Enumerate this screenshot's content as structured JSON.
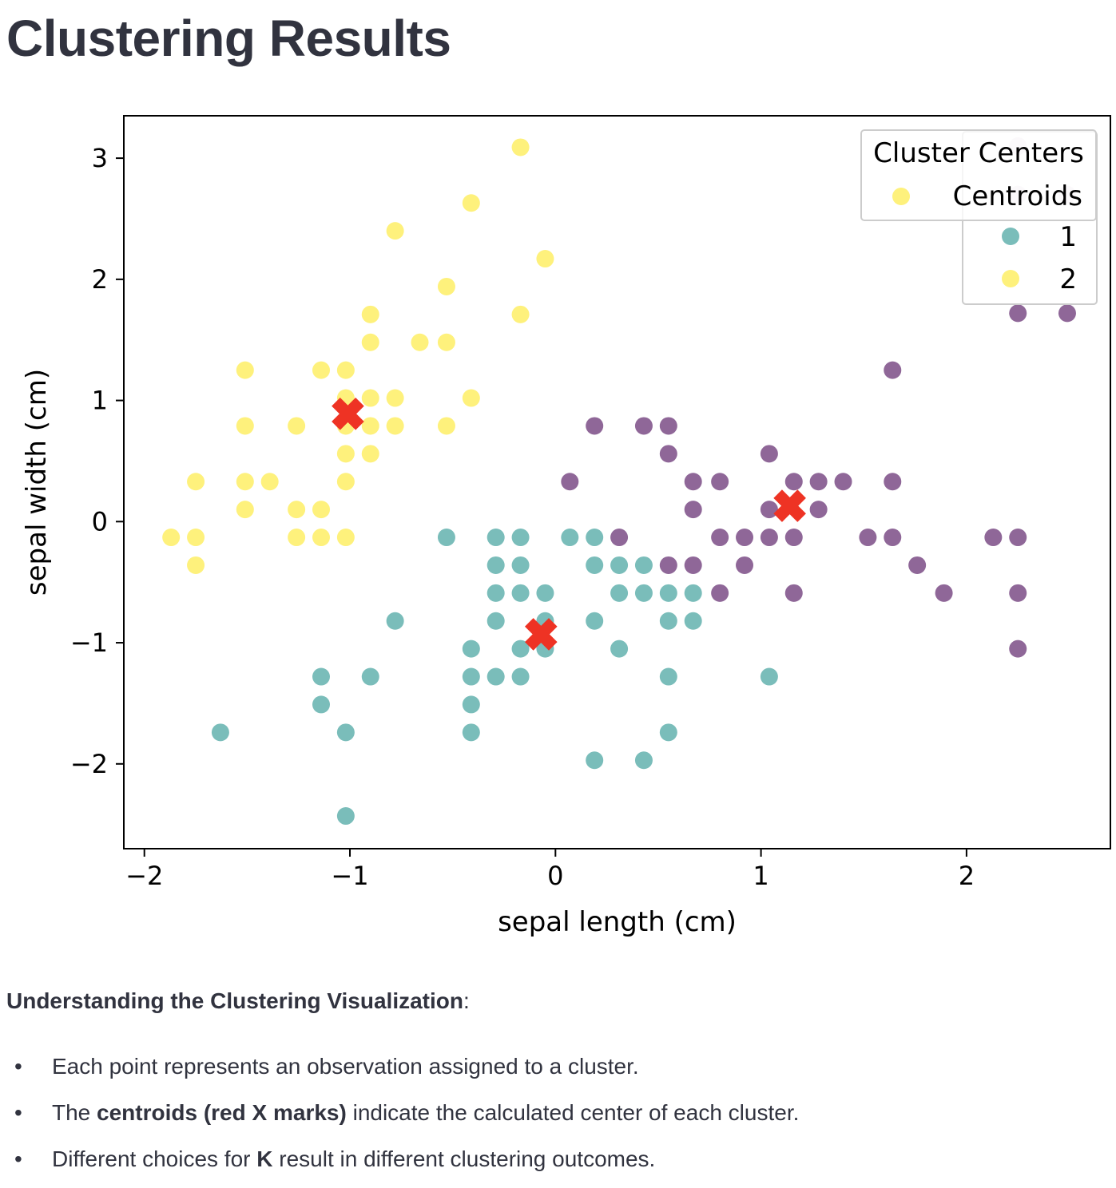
{
  "page": {
    "title": "Clustering Results"
  },
  "chart_data": {
    "type": "scatter",
    "xlabel": "sepal length (cm)",
    "ylabel": "sepal width (cm)",
    "xlim": [
      -2.1,
      2.7
    ],
    "ylim": [
      -2.7,
      3.35
    ],
    "xticks": [
      -2,
      -1,
      0,
      1,
      2
    ],
    "yticks": [
      -2,
      -1,
      0,
      1,
      2,
      3
    ],
    "xtick_labels": [
      "−2",
      "−1",
      "0",
      "1",
      "2"
    ],
    "ytick_labels": [
      "−2",
      "−1",
      "0",
      "1",
      "2",
      "3"
    ],
    "grid": false,
    "colors": {
      "cluster_0": "#440154",
      "cluster_1": "#21918c",
      "cluster_2": "#fde725",
      "centroid": "#ee3324"
    },
    "series": [
      {
        "name": "0",
        "color": "#440154",
        "points": [
          [
            2.25,
            2.7
          ],
          [
            2.25,
            1.72
          ],
          [
            2.49,
            1.72
          ],
          [
            2.49,
            2.7
          ],
          [
            2.25,
            3.1
          ],
          [
            1.64,
            1.25
          ],
          [
            0.19,
            0.79
          ],
          [
            0.43,
            0.79
          ],
          [
            0.55,
            0.79
          ],
          [
            0.55,
            0.56
          ],
          [
            1.04,
            0.56
          ],
          [
            0.07,
            0.33
          ],
          [
            0.67,
            0.33
          ],
          [
            0.8,
            0.33
          ],
          [
            1.16,
            0.33
          ],
          [
            1.28,
            0.33
          ],
          [
            1.4,
            0.33
          ],
          [
            1.64,
            0.33
          ],
          [
            0.67,
            0.1
          ],
          [
            1.04,
            0.1
          ],
          [
            1.28,
            0.1
          ],
          [
            0.31,
            -0.13
          ],
          [
            0.8,
            -0.13
          ],
          [
            0.92,
            -0.13
          ],
          [
            1.04,
            -0.13
          ],
          [
            1.16,
            -0.13
          ],
          [
            1.52,
            -0.13
          ],
          [
            1.64,
            -0.13
          ],
          [
            2.13,
            -0.13
          ],
          [
            2.25,
            -0.13
          ],
          [
            0.55,
            -0.36
          ],
          [
            0.67,
            -0.36
          ],
          [
            0.92,
            -0.36
          ],
          [
            1.76,
            -0.36
          ],
          [
            0.8,
            -0.59
          ],
          [
            1.16,
            -0.59
          ],
          [
            1.89,
            -0.59
          ],
          [
            2.25,
            -0.59
          ],
          [
            2.25,
            -1.05
          ]
        ]
      },
      {
        "name": "1",
        "color": "#21918c",
        "points": [
          [
            -0.53,
            -0.13
          ],
          [
            -0.29,
            -0.13
          ],
          [
            -0.17,
            -0.13
          ],
          [
            0.07,
            -0.13
          ],
          [
            0.19,
            -0.13
          ],
          [
            -0.29,
            -0.36
          ],
          [
            -0.17,
            -0.36
          ],
          [
            0.19,
            -0.36
          ],
          [
            0.31,
            -0.36
          ],
          [
            0.43,
            -0.36
          ],
          [
            -0.29,
            -0.59
          ],
          [
            -0.17,
            -0.59
          ],
          [
            -0.05,
            -0.59
          ],
          [
            0.31,
            -0.59
          ],
          [
            0.43,
            -0.59
          ],
          [
            0.55,
            -0.59
          ],
          [
            0.67,
            -0.59
          ],
          [
            -0.78,
            -0.82
          ],
          [
            -0.29,
            -0.82
          ],
          [
            -0.05,
            -0.82
          ],
          [
            0.19,
            -0.82
          ],
          [
            0.55,
            -0.82
          ],
          [
            0.67,
            -0.82
          ],
          [
            -0.41,
            -1.05
          ],
          [
            -0.17,
            -1.05
          ],
          [
            -0.05,
            -1.05
          ],
          [
            0.31,
            -1.05
          ],
          [
            -1.14,
            -1.28
          ],
          [
            -0.9,
            -1.28
          ],
          [
            -0.41,
            -1.28
          ],
          [
            -0.29,
            -1.28
          ],
          [
            -0.17,
            -1.28
          ],
          [
            0.55,
            -1.28
          ],
          [
            1.04,
            -1.28
          ],
          [
            -1.14,
            -1.51
          ],
          [
            -0.41,
            -1.51
          ],
          [
            -1.63,
            -1.74
          ],
          [
            -1.02,
            -1.74
          ],
          [
            -0.41,
            -1.74
          ],
          [
            0.55,
            -1.74
          ],
          [
            0.19,
            -1.97
          ],
          [
            0.43,
            -1.97
          ],
          [
            -1.02,
            -2.43
          ]
        ]
      },
      {
        "name": "2",
        "color": "#fde725",
        "points": [
          [
            -0.17,
            3.09
          ],
          [
            -0.41,
            2.63
          ],
          [
            -0.78,
            2.4
          ],
          [
            -0.05,
            2.17
          ],
          [
            -0.53,
            1.94
          ],
          [
            -0.9,
            1.71
          ],
          [
            -0.17,
            1.71
          ],
          [
            -0.9,
            1.48
          ],
          [
            -0.66,
            1.48
          ],
          [
            -0.53,
            1.48
          ],
          [
            -1.51,
            1.25
          ],
          [
            -1.14,
            1.25
          ],
          [
            -1.02,
            1.25
          ],
          [
            -1.02,
            1.02
          ],
          [
            -0.9,
            1.02
          ],
          [
            -0.78,
            1.02
          ],
          [
            -0.41,
            1.02
          ],
          [
            -1.51,
            0.79
          ],
          [
            -1.26,
            0.79
          ],
          [
            -1.02,
            0.79
          ],
          [
            -0.9,
            0.79
          ],
          [
            -0.78,
            0.79
          ],
          [
            -0.53,
            0.79
          ],
          [
            -1.02,
            0.56
          ],
          [
            -0.9,
            0.56
          ],
          [
            -1.75,
            0.33
          ],
          [
            -1.51,
            0.33
          ],
          [
            -1.39,
            0.33
          ],
          [
            -1.02,
            0.33
          ],
          [
            -1.51,
            0.1
          ],
          [
            -1.26,
            0.1
          ],
          [
            -1.14,
            0.1
          ],
          [
            -1.87,
            -0.13
          ],
          [
            -1.75,
            -0.13
          ],
          [
            -1.26,
            -0.13
          ],
          [
            -1.14,
            -0.13
          ],
          [
            -1.02,
            -0.13
          ],
          [
            -1.75,
            -0.36
          ]
        ]
      }
    ],
    "centroids": [
      [
        -1.01,
        0.89
      ],
      [
        -0.07,
        -0.93
      ],
      [
        1.14,
        0.13
      ]
    ],
    "legend": {
      "position": "upper right",
      "title": "Cluster Centers",
      "entries": [
        "Centroids"
      ],
      "cluster_title": "",
      "cluster_entries": [
        "1",
        "2"
      ]
    }
  },
  "explanation": {
    "heading": "Understanding the Clustering Visualization",
    "heading_suffix": ":",
    "bullet_1": "Each point represents an observation assigned to a cluster.",
    "bullet_2_pre": "The ",
    "bullet_2_bold": "centroids (red X marks)",
    "bullet_2_post": " indicate the calculated center of each cluster.",
    "bullet_3_pre": "Different choices for ",
    "bullet_3_bold": "K",
    "bullet_3_post": " result in different clustering outcomes.",
    "bullet_symbol": "•"
  }
}
